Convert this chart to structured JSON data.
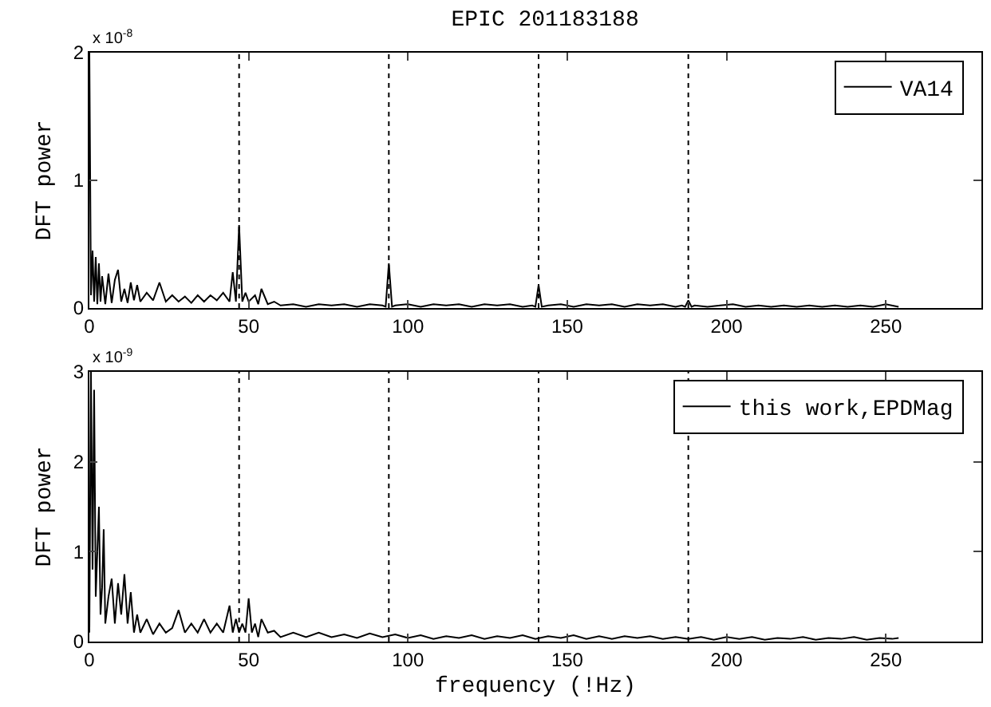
{
  "chart_data": [
    {
      "type": "line",
      "title": "EPIC 201183188",
      "ylabel": "DFT power",
      "annotations": [
        "x 10$^{-8}$"
      ],
      "legend": "top right",
      "grid": false,
      "marker": "none",
      "line_style": "solid",
      "xlim": [
        0,
        280
      ],
      "xticks": [
        0,
        50,
        100,
        150,
        200,
        250
      ],
      "ylim": [
        0,
        2
      ],
      "yticks": [
        0,
        1,
        2
      ],
      "ref_lines": [
        {
          "axis": "x",
          "value": 47,
          "line_style": "dotted",
          "color": "#000000"
        },
        {
          "axis": "x",
          "value": 94,
          "line_style": "dotted",
          "color": "#000000"
        },
        {
          "axis": "x",
          "value": 141,
          "line_style": "dotted",
          "color": "#000000"
        },
        {
          "axis": "x",
          "value": 188,
          "line_style": "dotted",
          "color": "#000000"
        }
      ],
      "series": [
        {
          "name": "VA14",
          "color": "#000000",
          "x": [
            0,
            0.5,
            1,
            1.5,
            2,
            2.5,
            3,
            3.5,
            4,
            5,
            6,
            7,
            8,
            9,
            10,
            11,
            12,
            13,
            14,
            15,
            16,
            18,
            20,
            22,
            24,
            26,
            28,
            30,
            32,
            34,
            36,
            38,
            40,
            42,
            44,
            45,
            46,
            47,
            48,
            49,
            50,
            52,
            53,
            54,
            56,
            58,
            60,
            64,
            68,
            72,
            76,
            80,
            84,
            88,
            92,
            93,
            94,
            95,
            96,
            100,
            104,
            108,
            112,
            116,
            120,
            124,
            128,
            132,
            136,
            139,
            140,
            141,
            142,
            144,
            148,
            152,
            156,
            160,
            164,
            168,
            172,
            176,
            180,
            184,
            186,
            187,
            188,
            189,
            190,
            194,
            198,
            202,
            206,
            210,
            214,
            218,
            222,
            226,
            230,
            234,
            238,
            242,
            246,
            250,
            254
          ],
          "values": [
            2,
            0.1,
            0.45,
            0.05,
            0.4,
            0.03,
            0.35,
            0.05,
            0.25,
            0.03,
            0.27,
            0.04,
            0.22,
            0.3,
            0.05,
            0.15,
            0.04,
            0.2,
            0.06,
            0.18,
            0.05,
            0.12,
            0.06,
            0.2,
            0.05,
            0.1,
            0.05,
            0.09,
            0.04,
            0.1,
            0.05,
            0.1,
            0.06,
            0.12,
            0.05,
            0.28,
            0.05,
            0.65,
            0.05,
            0.12,
            0.05,
            0.1,
            0.03,
            0.15,
            0.03,
            0.05,
            0.02,
            0.03,
            0.01,
            0.03,
            0.02,
            0.03,
            0.01,
            0.03,
            0.02,
            0.01,
            0.35,
            0.01,
            0.02,
            0.03,
            0.01,
            0.03,
            0.02,
            0.03,
            0.01,
            0.03,
            0.02,
            0.03,
            0.01,
            0.02,
            0.01,
            0.18,
            0.01,
            0.02,
            0.03,
            0.01,
            0.03,
            0.02,
            0.03,
            0.01,
            0.03,
            0.02,
            0.03,
            0.01,
            0.02,
            0.01,
            0.06,
            0.01,
            0.02,
            0.01,
            0.02,
            0.03,
            0.01,
            0.02,
            0.01,
            0.02,
            0.01,
            0.02,
            0.01,
            0.02,
            0.01,
            0.02,
            0.01,
            0.03,
            0.01
          ]
        }
      ]
    },
    {
      "type": "line",
      "xlabel": "frequency (!Hz)",
      "ylabel": "DFT power",
      "annotations": [
        "x 10$^{-9}$"
      ],
      "legend": "top right",
      "grid": false,
      "marker": "none",
      "line_style": "solid",
      "xlim": [
        0,
        280
      ],
      "xticks": [
        0,
        50,
        100,
        150,
        200,
        250
      ],
      "ylim": [
        0,
        3
      ],
      "yticks": [
        0,
        1,
        2,
        3
      ],
      "ref_lines": [
        {
          "axis": "x",
          "value": 47,
          "line_style": "dotted",
          "color": "#000000"
        },
        {
          "axis": "x",
          "value": 94,
          "line_style": "dotted",
          "color": "#000000"
        },
        {
          "axis": "x",
          "value": 141,
          "line_style": "dotted",
          "color": "#000000"
        },
        {
          "axis": "x",
          "value": 188,
          "line_style": "dotted",
          "color": "#000000"
        }
      ],
      "series": [
        {
          "name": "this work,EPDMag",
          "color": "#000000",
          "x": [
            0,
            0.5,
            1,
            1.5,
            2,
            2.5,
            3,
            3.5,
            4,
            4.5,
            5,
            6,
            7,
            8,
            9,
            10,
            11,
            12,
            13,
            14,
            15,
            16,
            18,
            20,
            22,
            24,
            26,
            28,
            30,
            32,
            34,
            36,
            38,
            40,
            42,
            44,
            45,
            46,
            47,
            48,
            49,
            50,
            51,
            52,
            53,
            54,
            56,
            58,
            60,
            64,
            68,
            72,
            76,
            80,
            84,
            88,
            92,
            96,
            100,
            104,
            108,
            112,
            116,
            120,
            124,
            128,
            132,
            136,
            140,
            144,
            148,
            152,
            156,
            160,
            164,
            168,
            172,
            176,
            180,
            184,
            188,
            192,
            196,
            200,
            204,
            208,
            212,
            216,
            220,
            224,
            228,
            232,
            236,
            240,
            244,
            248,
            252,
            254
          ],
          "values": [
            0.1,
            3.0,
            0.8,
            2.8,
            0.5,
            1.0,
            1.5,
            0.3,
            0.6,
            1.25,
            0.2,
            0.5,
            0.7,
            0.2,
            0.65,
            0.3,
            0.75,
            0.2,
            0.55,
            0.1,
            0.3,
            0.1,
            0.25,
            0.08,
            0.2,
            0.1,
            0.15,
            0.35,
            0.1,
            0.2,
            0.1,
            0.25,
            0.1,
            0.2,
            0.1,
            0.4,
            0.1,
            0.25,
            0.1,
            0.2,
            0.1,
            0.48,
            0.1,
            0.2,
            0.05,
            0.25,
            0.1,
            0.12,
            0.05,
            0.1,
            0.05,
            0.1,
            0.05,
            0.08,
            0.04,
            0.09,
            0.05,
            0.08,
            0.04,
            0.07,
            0.03,
            0.06,
            0.04,
            0.07,
            0.03,
            0.06,
            0.04,
            0.07,
            0.03,
            0.06,
            0.04,
            0.07,
            0.03,
            0.06,
            0.03,
            0.06,
            0.04,
            0.06,
            0.03,
            0.05,
            0.03,
            0.05,
            0.02,
            0.05,
            0.03,
            0.05,
            0.02,
            0.04,
            0.03,
            0.05,
            0.02,
            0.04,
            0.03,
            0.05,
            0.02,
            0.04,
            0.03,
            0.04
          ]
        }
      ]
    }
  ]
}
